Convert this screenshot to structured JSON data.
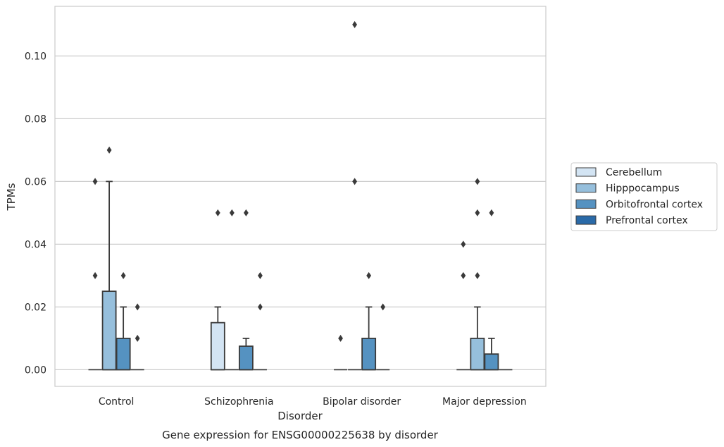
{
  "chart_data": {
    "type": "box",
    "xlabel": "Disorder",
    "ylabel": "TPMs",
    "caption": "Gene expression for ENSG00000225638 by disorder",
    "ylim": [
      -0.0053,
      0.1158
    ],
    "yticks": [
      "0.00",
      "0.02",
      "0.04",
      "0.06",
      "0.08",
      "0.10"
    ],
    "grid": "horizontal",
    "legend_position": "right",
    "categories": [
      "Control",
      "Schizophrenia",
      "Bipolar disorder",
      "Major depression"
    ],
    "series": [
      {
        "name": "Cerebellum",
        "color": "#d3e4f3",
        "boxes": [
          {
            "q1": 0,
            "median": 0,
            "q3": 0,
            "whisker_low": 0,
            "whisker_high": 0,
            "outliers": [
              0.03,
              0.06
            ]
          },
          {
            "q1": 0,
            "median": 0,
            "q3": 0.015,
            "whisker_low": 0,
            "whisker_high": 0.02,
            "outliers": [
              0.05
            ]
          },
          {
            "q1": 0,
            "median": 0,
            "q3": 0,
            "whisker_low": 0,
            "whisker_high": 0,
            "outliers": [
              0.01
            ]
          },
          {
            "q1": 0,
            "median": 0,
            "q3": 0,
            "whisker_low": 0,
            "whisker_high": 0,
            "outliers": [
              0.03,
              0.04
            ]
          }
        ]
      },
      {
        "name": "Hipppocampus",
        "color": "#96bfdc",
        "boxes": [
          {
            "q1": 0,
            "median": 0,
            "q3": 0.025,
            "whisker_low": 0,
            "whisker_high": 0.06,
            "outliers": [
              0.07
            ]
          },
          {
            "q1": 0,
            "median": 0,
            "q3": 0,
            "whisker_low": 0,
            "whisker_high": 0,
            "outliers": [
              0.05
            ]
          },
          {
            "q1": 0,
            "median": 0,
            "q3": 0,
            "whisker_low": 0,
            "whisker_high": 0,
            "outliers": [
              0.06,
              0.11
            ]
          },
          {
            "q1": 0,
            "median": 0,
            "q3": 0.01,
            "whisker_low": 0,
            "whisker_high": 0.02,
            "outliers": [
              0.03,
              0.05,
              0.06
            ]
          }
        ]
      },
      {
        "name": "Orbitofrontal cortex",
        "color": "#5592c1",
        "boxes": [
          {
            "q1": 0,
            "median": 0,
            "q3": 0.01,
            "whisker_low": 0,
            "whisker_high": 0.02,
            "outliers": [
              0.03
            ]
          },
          {
            "q1": 0,
            "median": 0,
            "q3": 0.0075,
            "whisker_low": 0,
            "whisker_high": 0.01,
            "outliers": [
              0.05
            ]
          },
          {
            "q1": 0,
            "median": 0,
            "q3": 0.01,
            "whisker_low": 0,
            "whisker_high": 0.02,
            "outliers": [
              0.03
            ]
          },
          {
            "q1": 0,
            "median": 0,
            "q3": 0.005,
            "whisker_low": 0,
            "whisker_high": 0.01,
            "outliers": [
              0.05
            ]
          }
        ]
      },
      {
        "name": "Prefrontal cortex",
        "color": "#2a6aa8",
        "boxes": [
          {
            "q1": 0,
            "median": 0,
            "q3": 0,
            "whisker_low": 0,
            "whisker_high": 0,
            "outliers": [
              0.01,
              0.02
            ]
          },
          {
            "q1": 0,
            "median": 0,
            "q3": 0,
            "whisker_low": 0,
            "whisker_high": 0,
            "outliers": [
              0.02,
              0.03
            ]
          },
          {
            "q1": 0,
            "median": 0,
            "q3": 0,
            "whisker_low": 0,
            "whisker_high": 0,
            "outliers": [
              0.02
            ]
          },
          {
            "q1": 0,
            "median": 0,
            "q3": 0,
            "whisker_low": 0,
            "whisker_high": 0,
            "outliers": []
          }
        ]
      }
    ]
  }
}
